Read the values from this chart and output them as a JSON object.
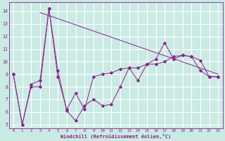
{
  "xlabel": "Windchill (Refroidissement éolien,°C)",
  "bg_color": "#caeae4",
  "grid_color": "#ffffff",
  "line_color": "#882288",
  "xlim": [
    -0.5,
    23.5
  ],
  "ylim": [
    4.7,
    14.7
  ],
  "ytick_vals": [
    5,
    6,
    7,
    8,
    9,
    10,
    11,
    12,
    13,
    14
  ],
  "series1_x": [
    0,
    1,
    2,
    3,
    4,
    5,
    6,
    7,
    8,
    9,
    10,
    11,
    12,
    13,
    14,
    15,
    16,
    17,
    18,
    19,
    20,
    21,
    22,
    23
  ],
  "series1_y": [
    9,
    5,
    8,
    8,
    14.2,
    9.3,
    6.1,
    5.3,
    6.5,
    7.0,
    6.5,
    6.6,
    8.0,
    9.5,
    8.5,
    9.8,
    9.8,
    10.0,
    10.4,
    10.5,
    10.4,
    9.3,
    8.8,
    8.8
  ],
  "series2_x": [
    3,
    23
  ],
  "series2_y": [
    13.9,
    9.0
  ],
  "series3_x": [
    0,
    1,
    2,
    3,
    4,
    5,
    6,
    7,
    8,
    9,
    10,
    11,
    12,
    13,
    14,
    15,
    16,
    17,
    18,
    19,
    20,
    21,
    22,
    23
  ],
  "series3_y": [
    9.0,
    5.0,
    8.2,
    8.5,
    14.2,
    8.8,
    6.2,
    7.5,
    6.2,
    8.8,
    9.0,
    9.1,
    9.4,
    9.5,
    9.5,
    9.8,
    10.2,
    11.5,
    10.2,
    10.5,
    10.4,
    10.1,
    8.8,
    8.8
  ]
}
